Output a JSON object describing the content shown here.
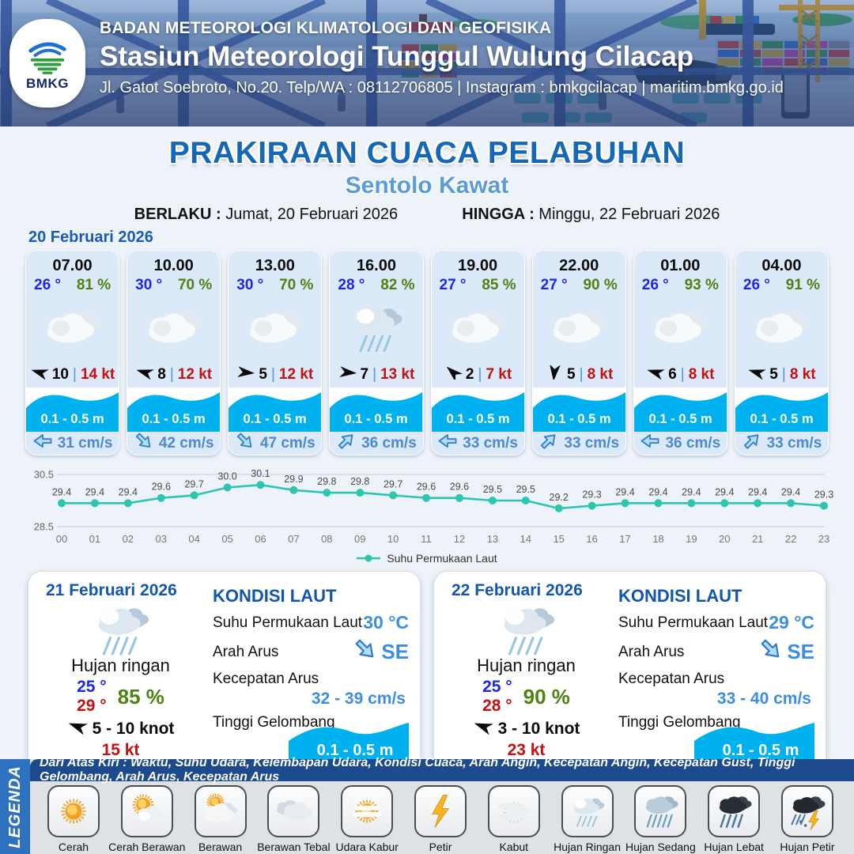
{
  "header": {
    "logo_text": "BMKG",
    "agency": "BADAN METEOROLOGI KLIMATOLOGI DAN GEOFISIKA",
    "station": "Stasiun Meteorologi Tunggul Wulung Cilacap",
    "contact": "Jl. Gatot Soebroto, No.20. Telp/WA : 08112706805 | Instagram : bmkgcilacap | maritim.bmkg.go.id"
  },
  "title": {
    "main": "PRAKIRAAN CUACA PELABUHAN",
    "subtitle": "Sentolo Kawat",
    "valid_from_label": "BERLAKU :",
    "valid_from": "Jumat, 20 Februari 2026",
    "valid_to_label": "HINGGA :",
    "valid_to": "Minggu, 22 Februari 2026"
  },
  "forecast_day_label": "20 Februari 2026",
  "hourly": [
    {
      "time": "07.00",
      "temp": "26 °",
      "humidity": "81 %",
      "icon": "berawan",
      "wind_dir_deg": 197,
      "wind_speed": "10",
      "gust": "14 kt",
      "wave": "0.1 - 0.5 m",
      "current_dir_deg": 180,
      "current": "31 cm/s"
    },
    {
      "time": "10.00",
      "temp": "30 °",
      "humidity": "70 %",
      "icon": "berawan",
      "wind_dir_deg": 197,
      "wind_speed": "8",
      "gust": "12 kt",
      "wave": "0.1 - 0.5 m",
      "current_dir_deg": 45,
      "current": "42 cm/s"
    },
    {
      "time": "13.00",
      "temp": "30 °",
      "humidity": "70 %",
      "icon": "berawan",
      "wind_dir_deg": 5,
      "wind_speed": "5",
      "gust": "12 kt",
      "wave": "0.1 - 0.5 m",
      "current_dir_deg": 45,
      "current": "47 cm/s"
    },
    {
      "time": "16.00",
      "temp": "28 °",
      "humidity": "82 %",
      "icon": "hujan-ringan",
      "wind_dir_deg": 5,
      "wind_speed": "7",
      "gust": "13 kt",
      "wave": "0.1 - 0.5 m",
      "current_dir_deg": 315,
      "current": "36 cm/s"
    },
    {
      "time": "19.00",
      "temp": "27 °",
      "humidity": "85 %",
      "icon": "berawan",
      "wind_dir_deg": 222,
      "wind_speed": "2",
      "gust": "7 kt",
      "wave": "0.1 - 0.5 m",
      "current_dir_deg": 180,
      "current": "33 cm/s"
    },
    {
      "time": "22.00",
      "temp": "27 °",
      "humidity": "90 %",
      "icon": "berawan",
      "wind_dir_deg": 95,
      "wind_speed": "5",
      "gust": "8 kt",
      "wave": "0.1 - 0.5 m",
      "current_dir_deg": 315,
      "current": "33 cm/s"
    },
    {
      "time": "01.00",
      "temp": "26 °",
      "humidity": "93 %",
      "icon": "berawan",
      "wind_dir_deg": 197,
      "wind_speed": "6",
      "gust": "8 kt",
      "wave": "0.1 - 0.5 m",
      "current_dir_deg": 180,
      "current": "36 cm/s"
    },
    {
      "time": "04.00",
      "temp": "26 °",
      "humidity": "91 %",
      "icon": "berawan",
      "wind_dir_deg": 197,
      "wind_speed": "5",
      "gust": "8 kt",
      "wave": "0.1 - 0.5 m",
      "current_dir_deg": 315,
      "current": "33 cm/s"
    }
  ],
  "chart_data": {
    "type": "line",
    "x": [
      "00",
      "01",
      "02",
      "03",
      "04",
      "05",
      "06",
      "07",
      "08",
      "09",
      "10",
      "11",
      "12",
      "13",
      "14",
      "15",
      "16",
      "17",
      "18",
      "19",
      "20",
      "21",
      "22",
      "23"
    ],
    "series": [
      {
        "name": "Suhu Permukaan Laut",
        "values": [
          29.4,
          29.4,
          29.4,
          29.6,
          29.7,
          30.0,
          30.1,
          29.9,
          29.8,
          29.8,
          29.7,
          29.6,
          29.6,
          29.5,
          29.5,
          29.2,
          29.3,
          29.4,
          29.4,
          29.4,
          29.4,
          29.4,
          29.4,
          29.3
        ]
      }
    ],
    "ylim": [
      28.5,
      30.5
    ],
    "yticks": [
      28.5,
      30.5
    ],
    "line_color": "#2cc5b0",
    "legend_position": "bottom",
    "grid": true
  },
  "daily_labels": {
    "heading": "KONDISI LAUT",
    "sst_label": "Suhu Permukaan Laut",
    "dir_label": "Arah Arus",
    "speed_label": "Kecepatan Arus",
    "wave_label": "Tinggi Gelombang"
  },
  "daily": [
    {
      "date": "21 Februari 2026",
      "icon": "hujan-ringan",
      "condition": "Hujan ringan",
      "temp_min": "25 °",
      "temp_max": "29 °",
      "humidity": "85 %",
      "wind_dir_deg": 200,
      "wind": "5  - 10 knot",
      "gust": "15 kt",
      "sea": {
        "sst": "30 °C",
        "dir": "SE",
        "dir_deg": 45,
        "current_speed": "32  -  39 cm/s",
        "wave": "0.1 - 0.5 m"
      }
    },
    {
      "date": "22 Februari 2026",
      "icon": "hujan-ringan",
      "condition": "Hujan ringan",
      "temp_min": "25 °",
      "temp_max": "28 °",
      "humidity": "90 %",
      "wind_dir_deg": 200,
      "wind": "3  - 10 knot",
      "gust": "23 kt",
      "sea": {
        "sst": "29 °C",
        "dir": "SE",
        "dir_deg": 45,
        "current_speed": "33 - 40 cm/s",
        "wave": "0.1 - 0.5 m"
      }
    }
  ],
  "legend": {
    "sidebar": "LEGENDA",
    "strip": "Dari Atas Kiri : Waktu, Suhu Udara, Kelembapan Udara, Kondisi Cuaca, Arah Angin, Kecepatan Angin, Kecepatan Gust, Tinggi Gelombang, Arah Arus, Kecepatan Arus",
    "items": [
      {
        "label": "Cerah",
        "icon": "cerah"
      },
      {
        "label": "Cerah Berawan",
        "icon": "cerah-berawan"
      },
      {
        "label": "Berawan",
        "icon": "berawan-legend"
      },
      {
        "label": "Berawan Tebal",
        "icon": "berawan-tebal"
      },
      {
        "label": "Udara Kabur",
        "icon": "udara-kabur"
      },
      {
        "label": "Petir",
        "icon": "petir"
      },
      {
        "label": "Kabut",
        "icon": "kabut"
      },
      {
        "label": "Hujan Ringan",
        "icon": "hujan-ringan"
      },
      {
        "label": "Hujan Sedang",
        "icon": "hujan-sedang"
      },
      {
        "label": "Hujan Lebat",
        "icon": "hujan-lebat"
      },
      {
        "label": "Hujan Petir",
        "icon": "hujan-petir"
      }
    ]
  },
  "colors": {
    "title_blue": "#1667b6",
    "subtitle_blue": "#5b9bd9",
    "temp_blue": "#1c27e8",
    "humidity_green": "#4f8113",
    "gust_red": "#c41111",
    "wave_blue": "#00b1f0",
    "current_text_blue": "#4d89ce",
    "chart_teal": "#2cc5b0",
    "legend_bar_blue": "#2e72bf",
    "legend_strip_blue": "#1c4a8c"
  }
}
